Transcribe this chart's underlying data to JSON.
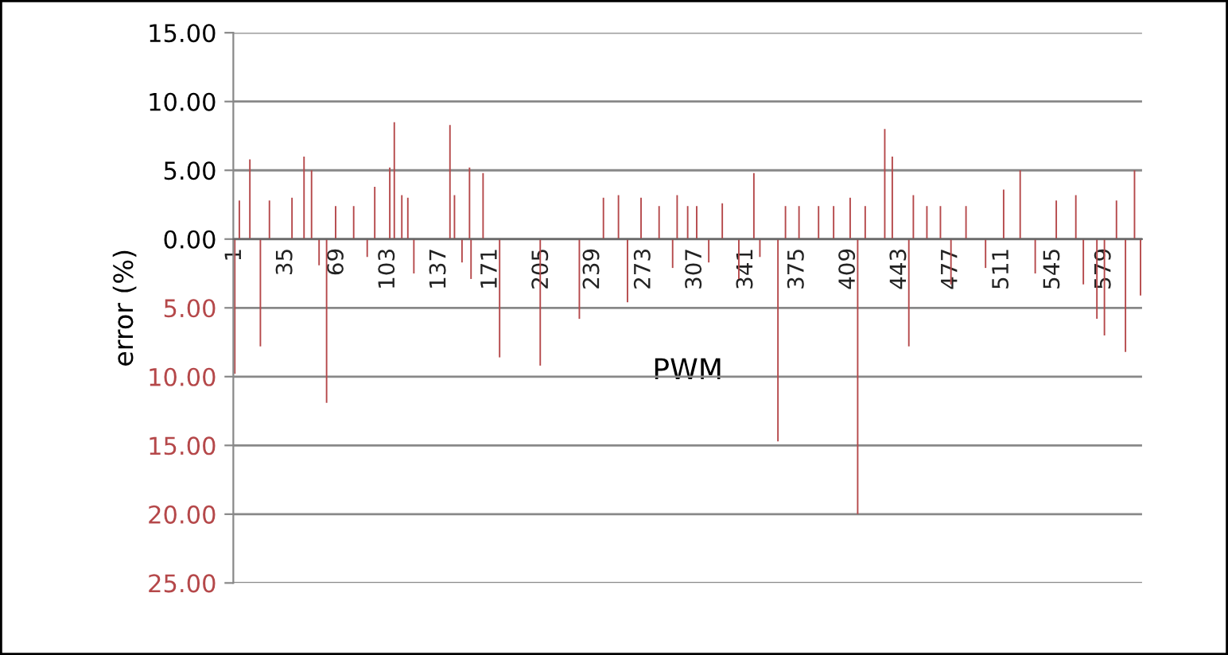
{
  "chart_data": {
    "type": "bar",
    "xlabel": "PWM",
    "ylabel": "error (%)",
    "x": [
      1,
      4,
      11,
      18,
      24,
      39,
      47,
      52,
      57,
      62,
      68,
      80,
      89,
      94,
      104,
      107,
      112,
      116,
      120,
      144,
      147,
      152,
      157,
      158,
      166,
      177,
      204,
      230,
      246,
      256,
      262,
      271,
      283,
      292,
      295,
      302,
      308,
      316,
      325,
      336,
      346,
      350,
      362,
      367,
      376,
      389,
      399,
      410,
      415,
      420,
      433,
      438,
      449,
      452,
      461,
      470,
      477,
      487,
      500,
      512,
      523,
      533,
      547,
      560,
      565,
      574,
      579,
      587,
      593,
      599,
      603
    ],
    "values": [
      -9.8,
      2.8,
      5.8,
      -7.8,
      2.8,
      3,
      6,
      5,
      -1.9,
      -11.9,
      2.4,
      2.4,
      -1.3,
      3.8,
      5.2,
      8.5,
      3.2,
      3,
      -2.5,
      8.3,
      3.2,
      -1.7,
      5.2,
      -2.9,
      4.8,
      -8.6,
      -9.2,
      -5.8,
      3,
      3.2,
      -4.6,
      3,
      2.4,
      -2.1,
      3.2,
      2.4,
      2.4,
      -1.7,
      2.6,
      -2.9,
      4.8,
      -1.3,
      -14.7,
      2.4,
      2.4,
      2.4,
      2.4,
      3,
      -20,
      2.4,
      8,
      6,
      -7.8,
      3.2,
      2.4,
      2.4,
      -3.3,
      2.4,
      -2.1,
      3.6,
      5,
      -2.5,
      2.8,
      3.2,
      -3.3,
      -5.8,
      -7,
      2.8,
      -8.2,
      5,
      -4.1
    ],
    "color": "#b5484a",
    "xlim": [
      0,
      604
    ],
    "xticks": [
      1,
      35,
      69,
      103,
      137,
      171,
      205,
      239,
      273,
      307,
      341,
      375,
      409,
      443,
      477,
      511,
      545,
      579
    ],
    "ylim": [
      -25,
      15
    ],
    "yticks": [
      {
        "value": 15,
        "label": "15.00"
      },
      {
        "value": 10,
        "label": "10.00"
      },
      {
        "value": 5,
        "label": "5.00"
      },
      {
        "value": 0,
        "label": "0.00"
      },
      {
        "value": -5,
        "label": "5.00"
      },
      {
        "value": -10,
        "label": "10.00"
      },
      {
        "value": -15,
        "label": "15.00"
      },
      {
        "value": -20,
        "label": "20.00"
      },
      {
        "value": -25,
        "label": "25.00"
      }
    ],
    "grid": "y"
  }
}
